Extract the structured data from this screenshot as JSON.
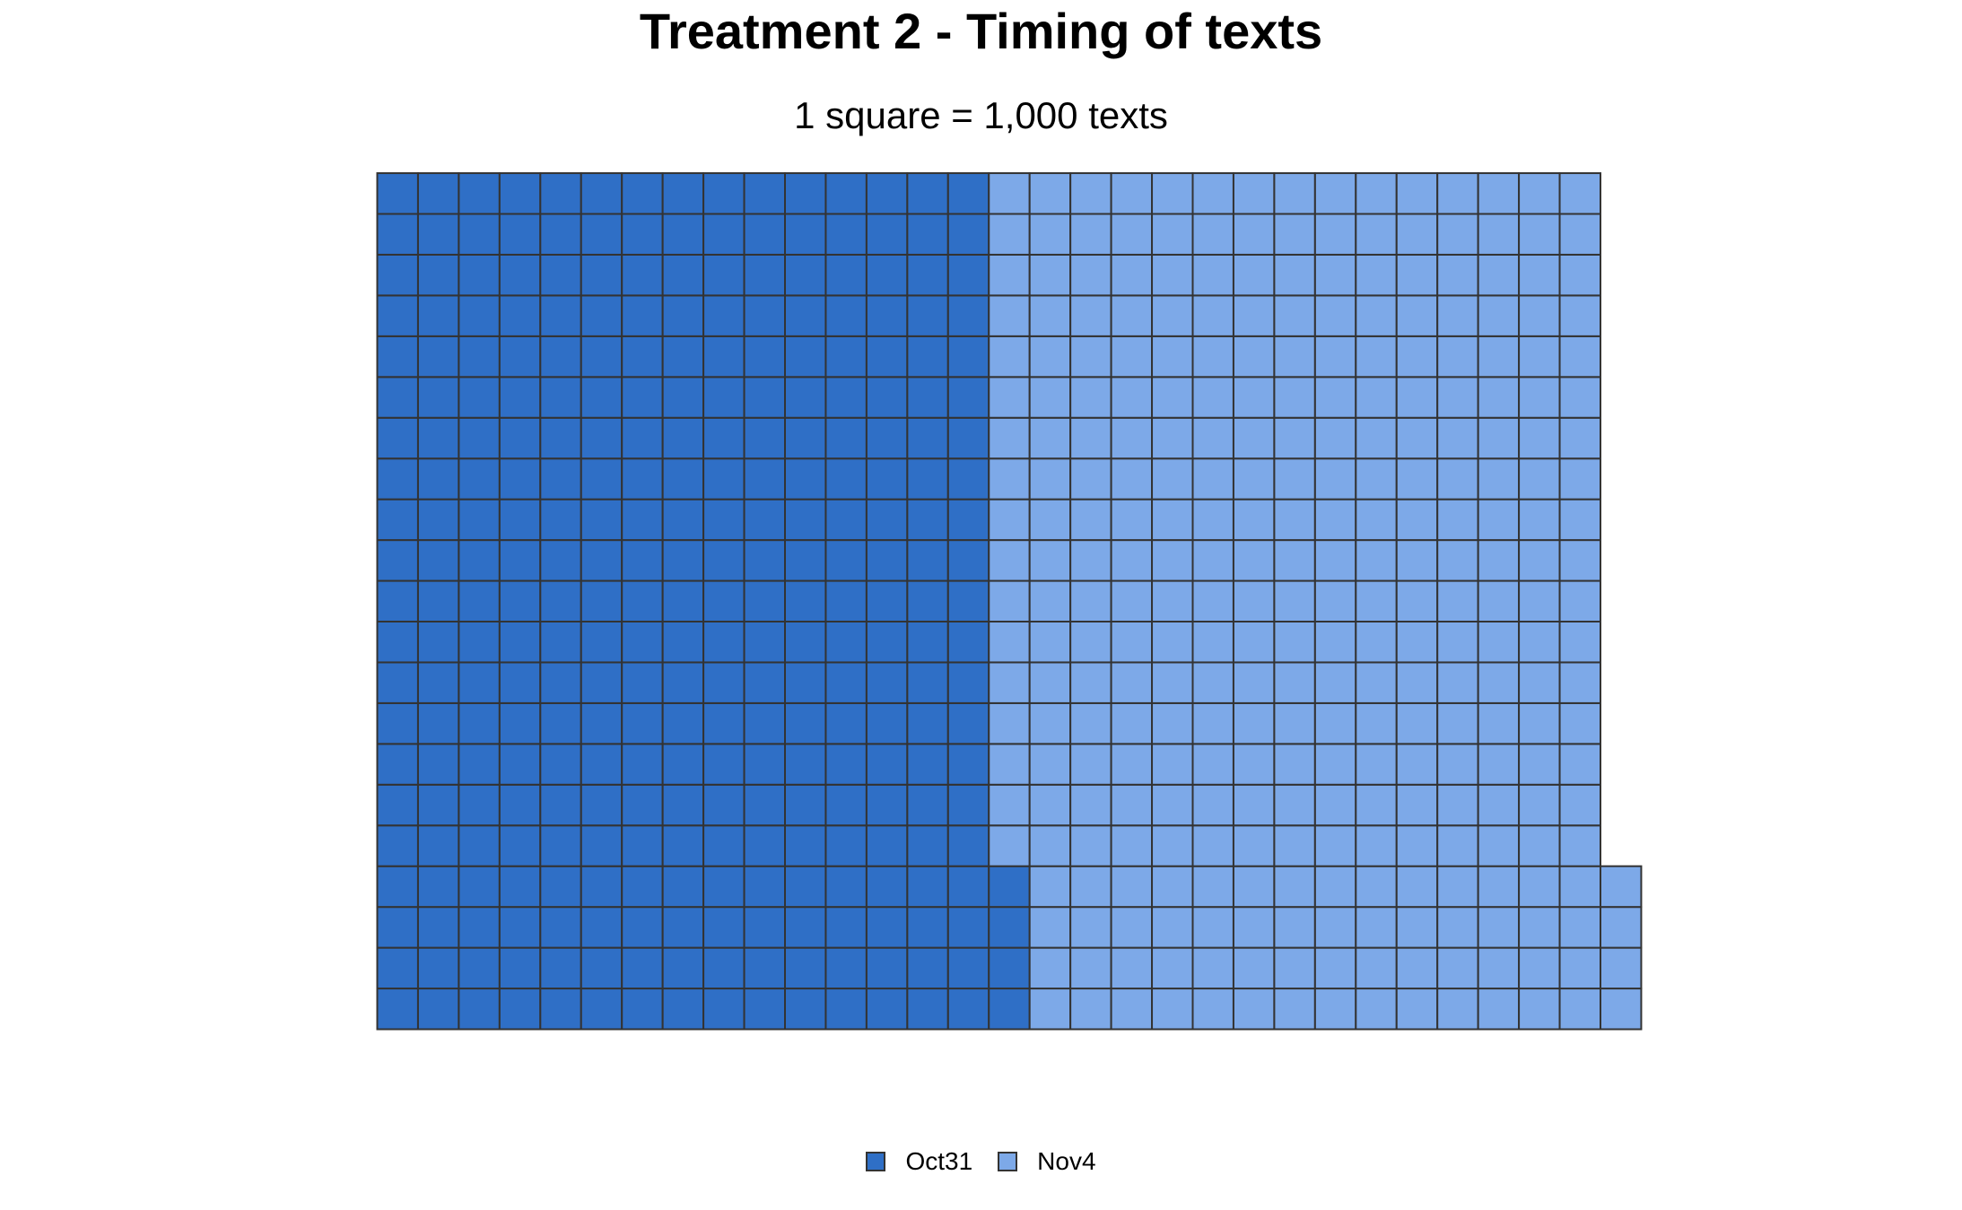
{
  "chart_data": {
    "type": "waffle",
    "title": "Treatment 2 - Timing of texts",
    "subtitle": "1 square = 1,000 texts",
    "rows": 21,
    "fill_order": "column-major, bottom-to-top, left-to-right",
    "series": [
      {
        "name": "Oct31",
        "value": 319,
        "color": "#2F6FC6"
      },
      {
        "name": "Nov4",
        "value": 315,
        "color": "#7DA9E8"
      }
    ],
    "cell_border_color": "#333333",
    "legend_position": "bottom-center"
  }
}
